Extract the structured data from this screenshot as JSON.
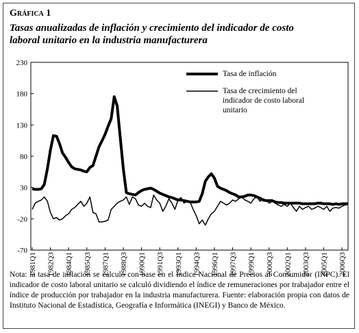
{
  "label": "Gráfica 1",
  "chart_data": {
    "type": "line",
    "title": "Tasas anualizadas de inflación y crecimiento del indicador de costo laboral unitario en la industria manufacturera",
    "categories": [
      "1981Q1",
      null,
      null,
      null,
      null,
      null,
      "1982Q3",
      null,
      null,
      null,
      null,
      null,
      "1984Q1",
      null,
      null,
      null,
      null,
      null,
      "1985Q3",
      null,
      null,
      null,
      null,
      null,
      "1987Q1",
      null,
      null,
      null,
      null,
      null,
      "1988Q3",
      null,
      null,
      null,
      null,
      null,
      "1990Q1",
      null,
      null,
      null,
      null,
      null,
      "1991Q3",
      null,
      null,
      null,
      null,
      null,
      "1993Q1",
      null,
      null,
      null,
      null,
      null,
      "1994Q3",
      null,
      null,
      null,
      null,
      null,
      "1996Q1",
      null,
      null,
      null,
      null,
      null,
      "1997Q3",
      null,
      null,
      null,
      null,
      null,
      "1999Q1",
      null,
      null,
      null,
      null,
      null,
      "2000Q3",
      null,
      null,
      null,
      null,
      null,
      "2002Q1",
      null,
      null,
      null,
      null,
      null,
      "2003Q3",
      null,
      null,
      null,
      null,
      null,
      "2005Q1",
      null,
      null,
      null,
      null,
      null,
      "2006Q3",
      null,
      null
    ],
    "series": [
      {
        "name": "Tasa de inflación",
        "color": "#000000",
        "width": 4,
        "values": [
          28,
          27,
          27,
          28,
          35,
          60,
          90,
          113,
          112,
          100,
          85,
          78,
          70,
          63,
          60,
          59,
          58,
          56,
          55,
          62,
          65,
          80,
          95,
          105,
          115,
          128,
          140,
          175,
          160,
          110,
          60,
          22,
          20,
          19,
          18,
          22,
          25,
          27,
          28,
          29,
          27,
          24,
          21,
          19,
          17,
          15,
          14,
          12,
          10,
          10,
          9,
          8,
          7,
          7,
          7,
          8,
          20,
          40,
          47,
          52,
          45,
          32,
          29,
          27,
          25,
          22,
          20,
          18,
          15,
          15,
          16,
          18,
          18,
          17,
          15,
          13,
          10,
          9,
          9,
          9,
          7,
          6,
          6,
          5,
          5,
          5,
          5,
          5,
          5,
          4,
          4,
          4,
          4,
          4,
          5,
          5,
          4,
          4,
          4,
          3,
          4,
          3,
          4,
          4,
          4
        ]
      },
      {
        "name": "Tasa de crecimiento del indicador de costo laboral unitario",
        "color": "#000000",
        "width": 1.5,
        "values": [
          -5,
          5,
          8,
          10,
          15,
          8,
          -10,
          -20,
          -18,
          -22,
          -20,
          -15,
          -12,
          -5,
          -2,
          3,
          8,
          0,
          5,
          15,
          -10,
          -12,
          -25,
          -25,
          -24,
          -22,
          -5,
          0,
          5,
          8,
          10,
          15,
          3,
          15,
          12,
          2,
          0,
          5,
          0,
          -2,
          18,
          10,
          5,
          -8,
          0,
          12,
          5,
          -5,
          10,
          14,
          5,
          8,
          7,
          -5,
          -15,
          -28,
          -22,
          -30,
          -20,
          -12,
          -8,
          0,
          8,
          5,
          2,
          5,
          10,
          8,
          12,
          15,
          10,
          8,
          5,
          12,
          15,
          8,
          12,
          10,
          5,
          8,
          5,
          2,
          0,
          3,
          0,
          5,
          -2,
          -8,
          0,
          -5,
          -2,
          0,
          -5,
          -3,
          0,
          -2,
          -5,
          0,
          -8,
          -3,
          -2,
          -3,
          0,
          2,
          3
        ]
      }
    ],
    "ylim": [
      -70,
      230
    ],
    "yticks": [
      -70,
      -20,
      30,
      80,
      130,
      180,
      230
    ]
  },
  "note": "Nota: la tasa de inflación se calculó con base en el Índice Nacional de Precios al Consumidor (INPC). El indicador de costo laboral unitario se calculó dividiendo el índice de remuneraciones por trabajador entre el índice de producción por trabajador en la industria manufacturera. Fuente: elaboración propia con datos de Instituto Nacional de Estadística, Geografía e Informática (INEGI) y Banco de México."
}
